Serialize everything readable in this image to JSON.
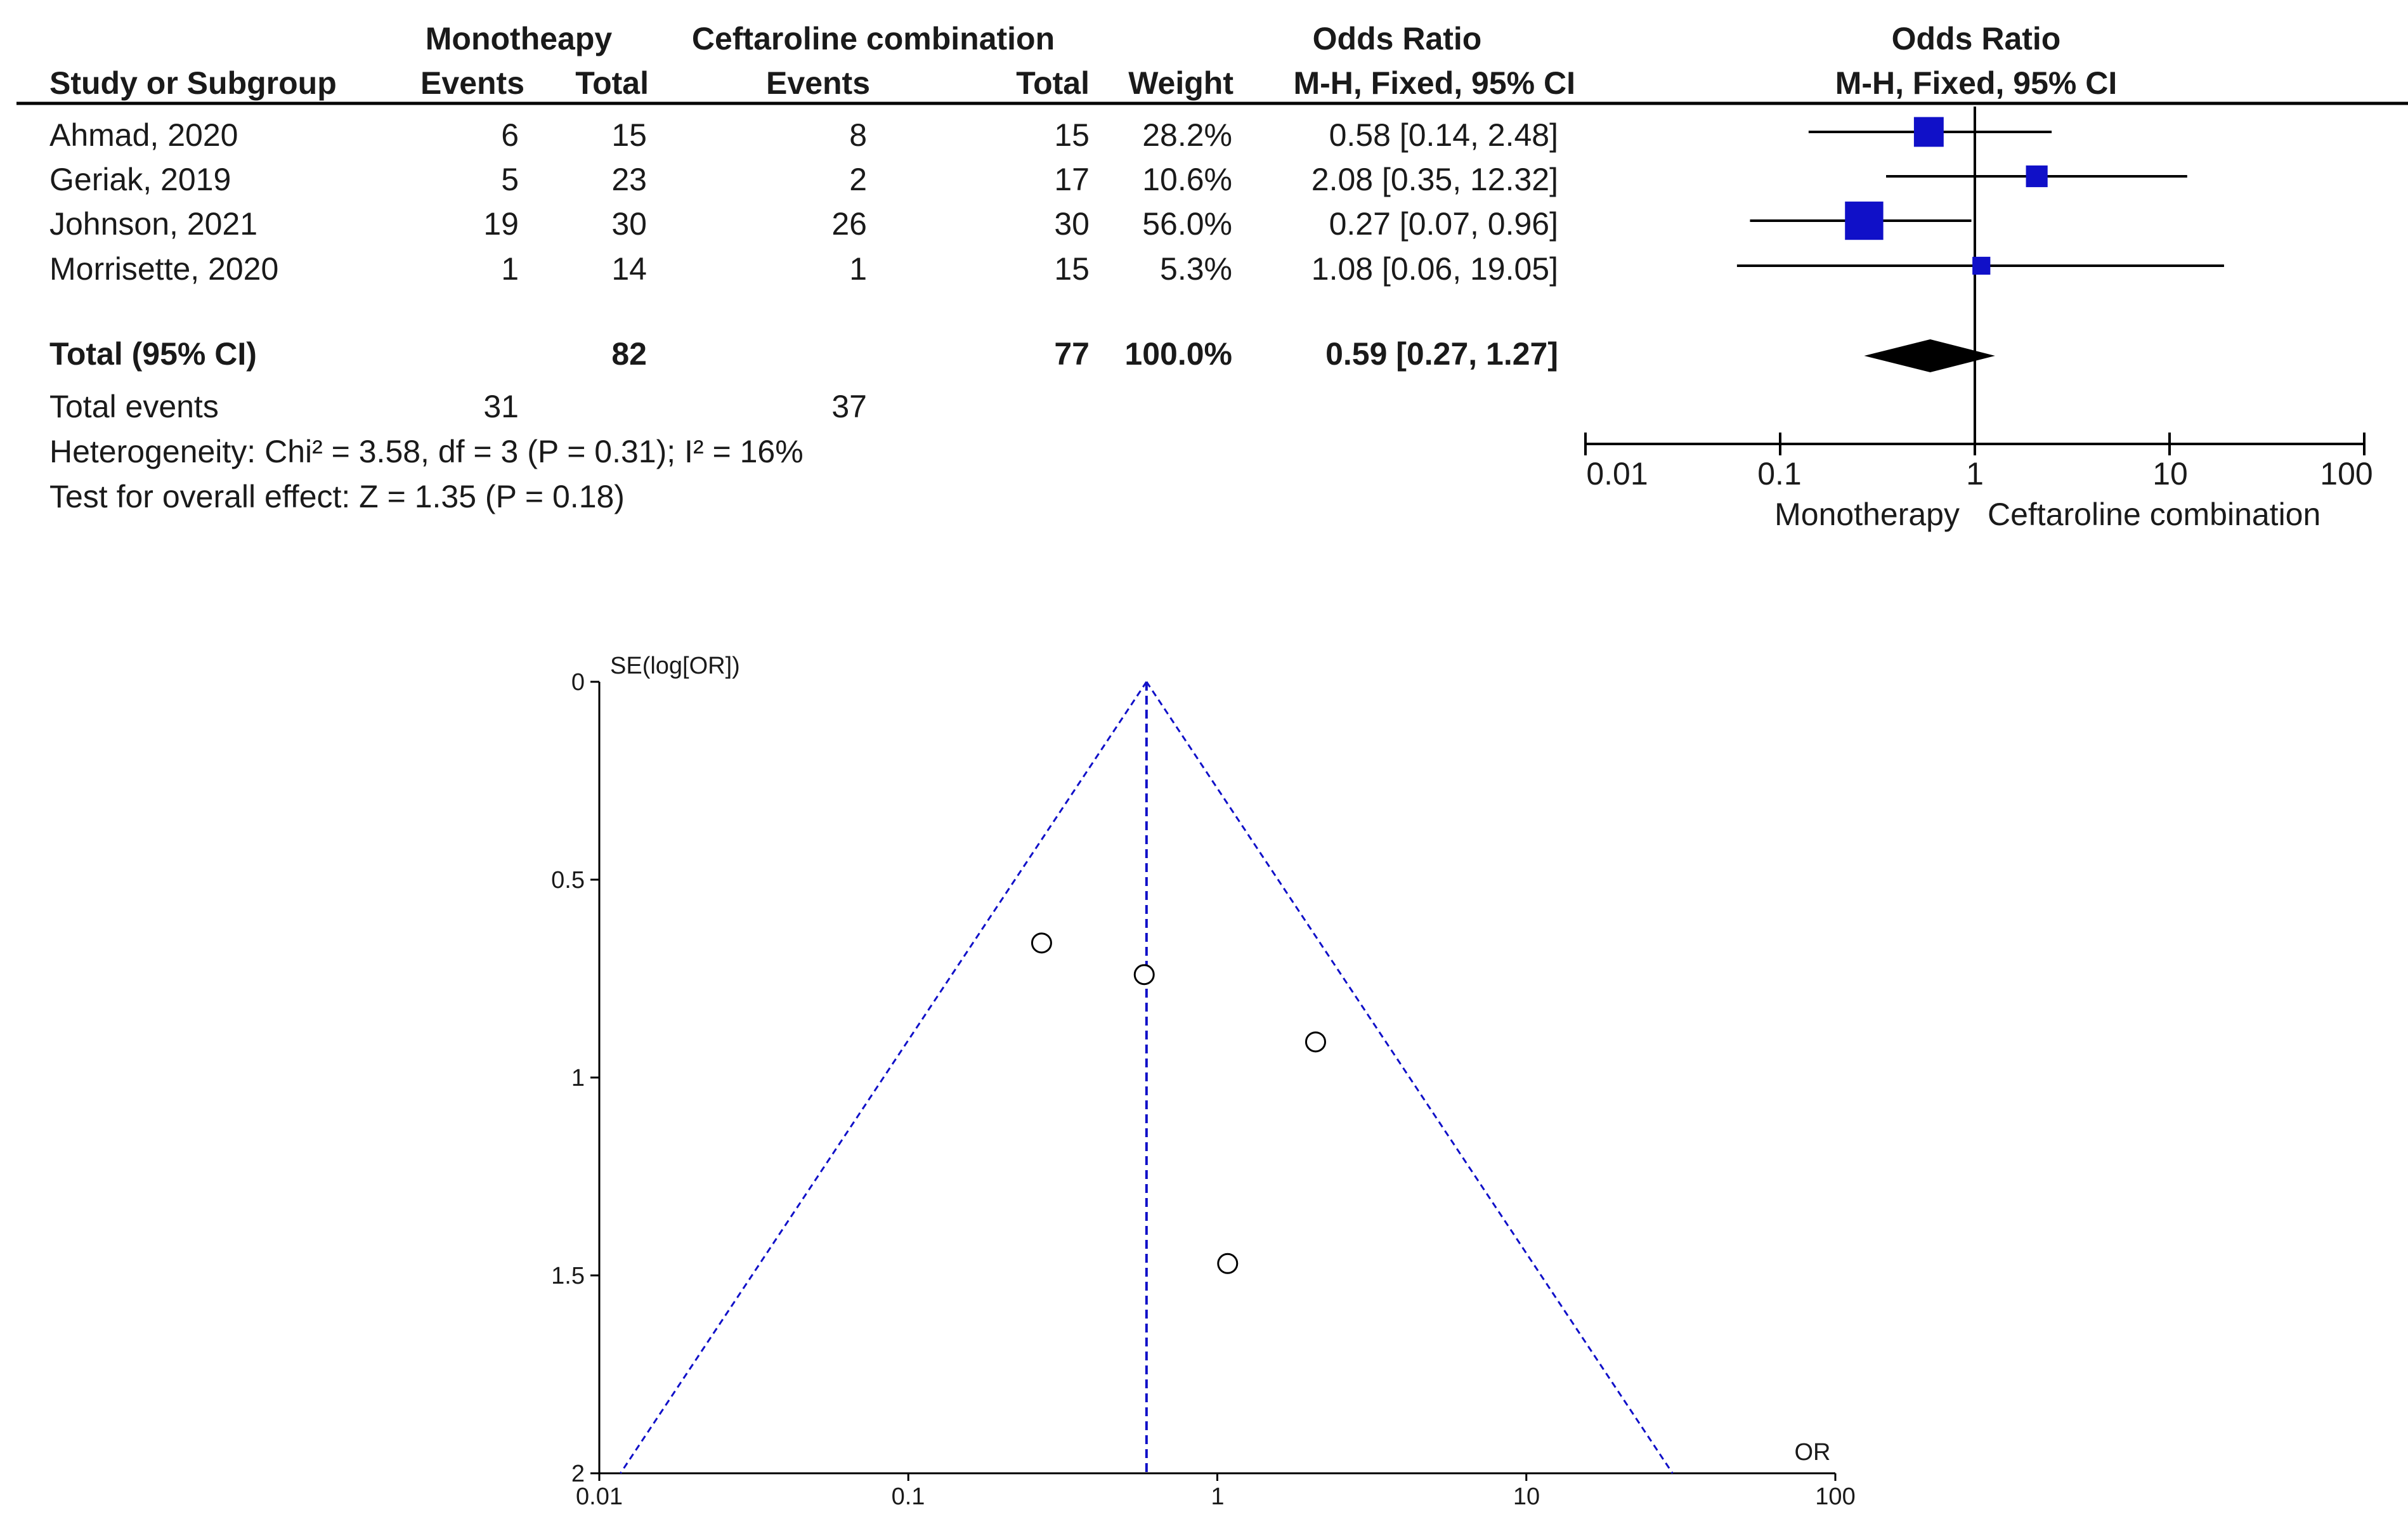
{
  "chart_data": [
    {
      "type": "forest",
      "group_headers": {
        "mono": "Monotheapy",
        "cefta": "Ceftaroline combination",
        "or": "Odds Ratio",
        "or_plot": "Odds Ratio"
      },
      "columns": {
        "study": "Study or Subgroup",
        "mono_events": "Events",
        "mono_total": "Total",
        "cefta_events": "Events",
        "cefta_total": "Total",
        "weight": "Weight",
        "method": "M-H, Fixed, 95% CI",
        "method_plot": "M-H, Fixed, 95% CI"
      },
      "studies": [
        {
          "name": "Ahmad, 2020",
          "mono_events": "6",
          "mono_total": "15",
          "cefta_events": "8",
          "cefta_total": "15",
          "weight_label": "28.2%",
          "ci_label": "0.58 [0.14, 2.48]",
          "or": 0.58,
          "lo": 0.14,
          "hi": 2.48,
          "weight": 28.2
        },
        {
          "name": "Geriak, 2019",
          "mono_events": "5",
          "mono_total": "23",
          "cefta_events": "2",
          "cefta_total": "17",
          "weight_label": "10.6%",
          "ci_label": "2.08 [0.35, 12.32]",
          "or": 2.08,
          "lo": 0.35,
          "hi": 12.32,
          "weight": 10.6
        },
        {
          "name": "Johnson, 2021",
          "mono_events": "19",
          "mono_total": "30",
          "cefta_events": "26",
          "cefta_total": "30",
          "weight_label": "56.0%",
          "ci_label": "0.27 [0.07, 0.96]",
          "or": 0.27,
          "lo": 0.07,
          "hi": 0.96,
          "weight": 56.0
        },
        {
          "name": "Morrisette, 2020",
          "mono_events": "1",
          "mono_total": "14",
          "cefta_events": "1",
          "cefta_total": "15",
          "weight_label": "5.3%",
          "ci_label": "1.08 [0.06, 19.05]",
          "or": 1.08,
          "lo": 0.06,
          "hi": 19.05,
          "weight": 5.3
        }
      ],
      "total": {
        "label": "Total (95% CI)",
        "mono_total": "82",
        "cefta_total": "77",
        "weight_label": "100.0%",
        "ci_label": "0.59 [0.27, 1.27]",
        "or": 0.59,
        "lo": 0.27,
        "hi": 1.27
      },
      "total_events": {
        "label": "Total events",
        "mono": "31",
        "cefta": "37"
      },
      "heterogeneity": "Heterogeneity: Chi² = 3.58, df = 3 (P = 0.31); I² = 16%",
      "overall_effect": "Test for overall effect: Z = 1.35 (P = 0.18)",
      "axis": {
        "scale": "log",
        "range": [
          0.01,
          100
        ],
        "ticks": [
          0.01,
          0.1,
          1,
          10,
          100
        ],
        "tick_labels": [
          "0.01",
          "0.1",
          "1",
          "10",
          "100"
        ]
      },
      "favours_left": "Monotherapy",
      "favours_right": "Ceftaroline combination",
      "colors": {
        "marker": "#1010c8",
        "line": "#000000"
      }
    },
    {
      "type": "funnel",
      "ylabel": "SE(log[OR])",
      "xlabel": "OR",
      "x_scale": "log",
      "xlim": [
        0.01,
        100
      ],
      "x_ticks": [
        0.01,
        0.1,
        1,
        10,
        100
      ],
      "x_tick_labels": [
        "0.01",
        "0.1",
        "1",
        "10",
        "100"
      ],
      "ylim": [
        0,
        2
      ],
      "y_ticks": [
        0,
        0.5,
        1,
        1.5,
        2
      ],
      "y_tick_labels": [
        "0",
        "0.5",
        "1",
        "1.5",
        "2"
      ],
      "pooled_or": 0.59,
      "points": [
        {
          "or": 0.58,
          "se": 0.74
        },
        {
          "or": 2.08,
          "se": 0.91
        },
        {
          "or": 0.27,
          "se": 0.66
        },
        {
          "or": 1.08,
          "se": 1.47
        }
      ],
      "colors": {
        "guide": "#1010c8"
      }
    }
  ]
}
